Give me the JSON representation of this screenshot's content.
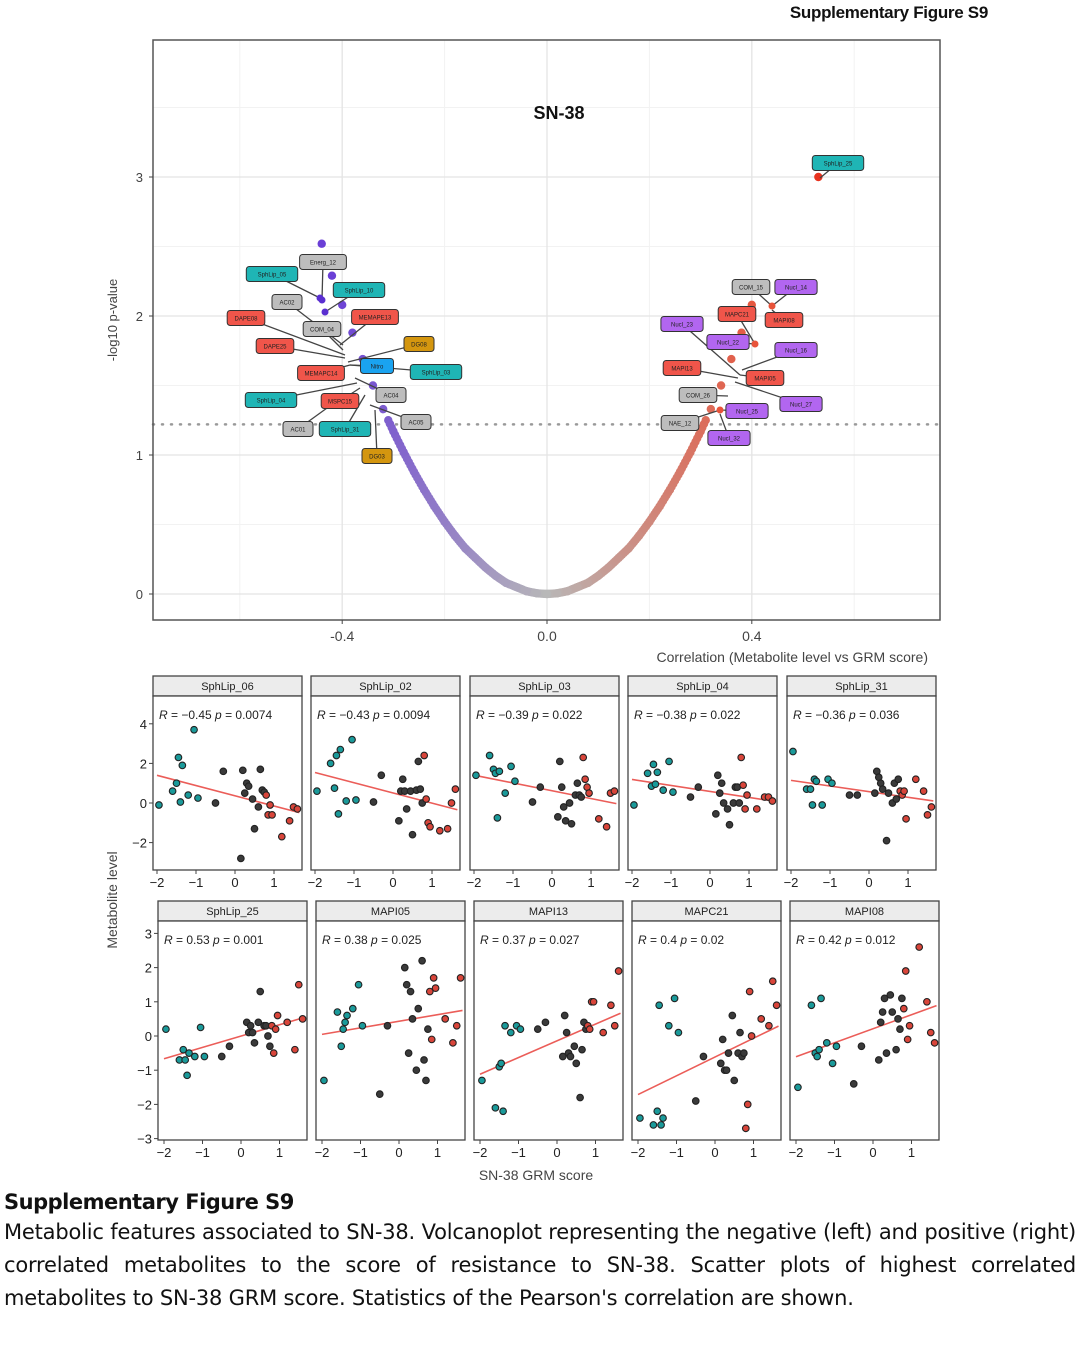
{
  "figure_label": "Supplementary Figure S9",
  "caption": {
    "title": "Supplementary Figure S9",
    "text": "Metabolic features associated to SN-38. Volcanoplot representing the negative (left) and positive (right) correlated metabolites to the score of resistance to SN-38. Scatter plots of highest correlated metabolites to SN-38 GRM score. Statistics of the Pearson's correlation are shown."
  },
  "colors": {
    "negative": "#6a3fd6",
    "neutral": "#b8b8b8",
    "positive": "#e8533a",
    "teal_group": "#1a9a9a",
    "dark_group": "#3a3a3a",
    "red_group": "#d9453a",
    "fit_line": "#e8413c",
    "label_SphLip": "#1fb5b5",
    "label_gray": "#bdbdbd",
    "label_red": "#f0554a",
    "label_orange": "#d4960f",
    "label_purple": "#b266f0",
    "label_blue": "#1aa3f0"
  },
  "chart_data": [
    {
      "type": "scatter",
      "title": "SN-38",
      "xlabel": "Correlation (Metabolite level vs GRM score)",
      "ylabel": "-log10 p-value",
      "xlim": [
        -0.77,
        0.77
      ],
      "ylim": [
        -0.2,
        4.0
      ],
      "xticks": [
        -0.4,
        0.0,
        0.4
      ],
      "xtick_labels": [
        "-0.4",
        "0.0",
        "0.4"
      ],
      "yticks": [
        0,
        1,
        2,
        3
      ],
      "ytick_labels": [
        "0",
        "1",
        "2",
        "3"
      ],
      "grid": true,
      "threshold_neglog10p": 1.22,
      "points": {
        "x": [
          -0.44,
          -0.42,
          -0.4,
          -0.38,
          -0.36,
          -0.34,
          -0.32,
          -0.3,
          -0.28,
          -0.26,
          -0.24,
          -0.22,
          -0.2,
          -0.18,
          -0.16,
          -0.14,
          -0.12,
          -0.1,
          -0.08,
          -0.06,
          -0.04,
          -0.02,
          0.0,
          0.02,
          0.04,
          0.06,
          0.08,
          0.1,
          0.12,
          0.14,
          0.16,
          0.18,
          0.2,
          0.22,
          0.24,
          0.26,
          0.28,
          0.3,
          0.32,
          0.34,
          0.36,
          0.38,
          0.4,
          0.53
        ],
        "y": [
          2.52,
          2.29,
          2.08,
          1.88,
          1.69,
          1.5,
          1.33,
          1.17,
          1.02,
          0.88,
          0.75,
          0.63,
          0.52,
          0.42,
          0.33,
          0.26,
          0.19,
          0.13,
          0.08,
          0.05,
          0.02,
          0.005,
          0,
          0.005,
          0.02,
          0.05,
          0.08,
          0.13,
          0.19,
          0.26,
          0.33,
          0.42,
          0.52,
          0.63,
          0.75,
          0.88,
          1.02,
          1.17,
          1.33,
          1.5,
          1.69,
          1.88,
          2.08,
          3.0
        ]
      },
      "labels": [
        {
          "text": "SphLip_05",
          "kind": "SphLip"
        },
        {
          "text": "Energ_12",
          "kind": "gray"
        },
        {
          "text": "SphLip_10",
          "kind": "SphLip"
        },
        {
          "text": "AC02",
          "kind": "gray"
        },
        {
          "text": "COM_04",
          "kind": "gray"
        },
        {
          "text": "DAPE08",
          "kind": "red"
        },
        {
          "text": "MEMAPE13",
          "kind": "red"
        },
        {
          "text": "DAPE25",
          "kind": "red"
        },
        {
          "text": "DG08",
          "kind": "orange"
        },
        {
          "text": "Nitro",
          "kind": "blue"
        },
        {
          "text": "SphLip_03",
          "kind": "SphLip"
        },
        {
          "text": "MEMAPC14",
          "kind": "red"
        },
        {
          "text": "AC04",
          "kind": "gray"
        },
        {
          "text": "SphLip_04",
          "kind": "SphLip"
        },
        {
          "text": "MSPC15",
          "kind": "red"
        },
        {
          "text": "AC01",
          "kind": "gray"
        },
        {
          "text": "SphLip_31",
          "kind": "SphLip"
        },
        {
          "text": "AC05",
          "kind": "gray"
        },
        {
          "text": "DG03",
          "kind": "orange"
        },
        {
          "text": "SphLip_25",
          "kind": "SphLip"
        },
        {
          "text": "COM_15",
          "kind": "gray"
        },
        {
          "text": "Nucl_14",
          "kind": "purple"
        },
        {
          "text": "MAPC21",
          "kind": "red"
        },
        {
          "text": "MAPI08",
          "kind": "red"
        },
        {
          "text": "Nucl_23",
          "kind": "purple"
        },
        {
          "text": "Nucl_22",
          "kind": "purple"
        },
        {
          "text": "Nucl_16",
          "kind": "purple"
        },
        {
          "text": "MAPI13",
          "kind": "red"
        },
        {
          "text": "MAPI05",
          "kind": "red"
        },
        {
          "text": "COM_26",
          "kind": "gray"
        },
        {
          "text": "Nucl_27",
          "kind": "purple"
        },
        {
          "text": "NAE_12",
          "kind": "gray"
        },
        {
          "text": "Nucl_25",
          "kind": "purple"
        },
        {
          "text": "Nucl_32",
          "kind": "purple"
        }
      ]
    },
    {
      "type": "scatter",
      "title": "",
      "xlabel": "SN-38 GRM score",
      "ylabel": "Metabolite level",
      "xticks": [
        -2,
        -1,
        0,
        1
      ],
      "x": [
        -1.95,
        -1.6,
        -1.5,
        -1.45,
        -1.4,
        -1.35,
        -1.2,
        -1.05,
        -0.95,
        -0.5,
        -0.3,
        0.15,
        0.2,
        0.25,
        0.3,
        0.35,
        0.45,
        0.5,
        0.6,
        0.65,
        0.7,
        0.75,
        0.8,
        0.85,
        0.9,
        0.95,
        1.2,
        1.4,
        1.5,
        1.6
      ],
      "group": [
        "teal",
        "teal",
        "teal",
        "teal",
        "teal",
        "teal",
        "teal",
        "teal",
        "teal",
        "dark",
        "dark",
        "dark",
        "dark",
        "dark",
        "dark",
        "dark",
        "dark",
        "dark",
        "dark",
        "dark",
        "dark",
        "dark",
        "red",
        "red",
        "red",
        "red",
        "red",
        "red",
        "red",
        "red"
      ],
      "panels": [
        {
          "name": "SphLip_06",
          "R": "−0.45",
          "p": "0.0074",
          "row": 1,
          "y": [
            -0.1,
            0.6,
            1.0,
            2.3,
            0.05,
            1.9,
            0.4,
            3.7,
            0.25,
            0,
            1.6,
            -2.8,
            1.65,
            0.5,
            1.0,
            0.85,
            0.2,
            -1.3,
            -0.2,
            1.7,
            0.65,
            0.55,
            0.4,
            -0.6,
            -0.1,
            -0.6,
            -1.7,
            -0.9,
            -0.2,
            -0.3
          ]
        },
        {
          "name": "SphLip_02",
          "R": "−0.43",
          "p": "0.0094",
          "row": 1,
          "y": [
            0.6,
            2.0,
            0.75,
            2.4,
            -0.55,
            2.7,
            0.1,
            3.2,
            0.15,
            0.05,
            1.4,
            -0.9,
            0.6,
            1.2,
            0.6,
            -0.3,
            0.6,
            -1.6,
            0.65,
            2.1,
            0.7,
            0,
            2.4,
            0.2,
            -1.0,
            -1.2,
            -1.4,
            -1.3,
            0,
            0.7
          ]
        },
        {
          "name": "SphLip_03",
          "R": "−0.39",
          "p": "0.022",
          "row": 1,
          "y": [
            1.4,
            2.4,
            1.7,
            1.5,
            -0.75,
            1.6,
            0.5,
            1.85,
            1.1,
            0.05,
            0.8,
            -0.7,
            2.1,
            0.8,
            -0.2,
            -0.9,
            0,
            -1.05,
            0.4,
            1.0,
            0.4,
            0.3,
            2.3,
            1.2,
            0.8,
            0.5,
            -0.8,
            -1.2,
            0.5,
            0.6
          ]
        },
        {
          "name": "SphLip_04",
          "R": "−0.38",
          "p": "0.022",
          "row": 1,
          "y": [
            -0.1,
            1.5,
            0.85,
            1.95,
            0.95,
            1.55,
            0.65,
            2.1,
            0.55,
            0.3,
            0.8,
            -0.55,
            1.4,
            0.5,
            1.0,
            0,
            -0.3,
            -1.1,
            0,
            0.8,
            0.8,
            0,
            2.3,
            0.9,
            -0.3,
            0.4,
            -0.3,
            0.3,
            0.3,
            0.1
          ]
        },
        {
          "name": "SphLip_31",
          "R": "−0.36",
          "p": "0.036",
          "row": 1,
          "y": [
            2.6,
            0.7,
            0.7,
            -0.1,
            1.2,
            1.1,
            -0.1,
            1.2,
            1.0,
            0.4,
            0.4,
            0.5,
            1.6,
            1.3,
            1.0,
            0.7,
            -1.9,
            0.5,
            0,
            1.0,
            0.2,
            1.2,
            0.6,
            0.4,
            0.6,
            -0.8,
            1.2,
            0.6,
            -0.6,
            -0.2
          ]
        },
        {
          "name": "SphLip_25",
          "R": "0.53",
          "p": "0.001",
          "row": 2,
          "y": [
            0.2,
            -0.7,
            -0.4,
            -0.7,
            -1.15,
            -0.5,
            -0.6,
            0.25,
            -0.6,
            -0.6,
            -0.3,
            0.4,
            0.1,
            0.3,
            0.1,
            -0.2,
            0.4,
            1.3,
            0.3,
            0.3,
            0,
            -0.3,
            0.3,
            -0.5,
            0.2,
            0.6,
            0.4,
            -0.4,
            1.5,
            0.5
          ]
        },
        {
          "name": "MAPI05",
          "R": "0.38",
          "p": "0.025",
          "row": 2,
          "y": [
            -1.3,
            0.7,
            -0.3,
            0.2,
            0.4,
            0.6,
            0.8,
            1.5,
            0.3,
            -1.7,
            0.3,
            2.0,
            1.5,
            -0.5,
            1.3,
            0.5,
            -1.0,
            0.8,
            2.2,
            -0.7,
            -1.3,
            0.2,
            1.3,
            -0.1,
            1.7,
            1.4,
            0.5,
            -0.2,
            0.3,
            1.7
          ]
        },
        {
          "name": "MAPI13",
          "R": "0.37",
          "p": "0.027",
          "row": 2,
          "y": [
            -1.3,
            -2.1,
            -0.9,
            -0.8,
            -2.2,
            0.3,
            0.1,
            0.3,
            0.2,
            0.2,
            0.4,
            -0.6,
            0.6,
            0.1,
            -0.5,
            -0.6,
            -0.3,
            -0.8,
            -1.8,
            -0.4,
            0.4,
            0.2,
            0.3,
            0.2,
            1.0,
            1.0,
            0.1,
            0.9,
            0.3,
            1.9
          ]
        },
        {
          "name": "MAPC21",
          "R": "0.4",
          "p": "0.02",
          "row": 2,
          "y": [
            -2.4,
            -2.6,
            -2.2,
            0.9,
            -2.6,
            -2.4,
            0.3,
            1.1,
            0.1,
            -1.9,
            -0.6,
            -0.8,
            -0.1,
            -1.0,
            -1.0,
            -0.5,
            0.6,
            -1.3,
            -0.5,
            0.1,
            -0.6,
            -0.5,
            -2.7,
            -2.0,
            1.3,
            0,
            0.5,
            0.3,
            1.6,
            0.9
          ]
        },
        {
          "name": "MAPI08",
          "R": "0.42",
          "p": "0.012",
          "row": 2,
          "y": [
            -1.5,
            0.9,
            -0.5,
            -0.6,
            -0.4,
            1.1,
            -0.2,
            -0.8,
            -0.3,
            -1.4,
            -0.3,
            -0.7,
            0.4,
            0.7,
            1.1,
            -0.5,
            1.2,
            0.7,
            -0.4,
            0.5,
            0.2,
            1.1,
            0.8,
            1.9,
            -0.1,
            0.3,
            2.6,
            1.0,
            0.1,
            -0.2
          ]
        }
      ]
    }
  ]
}
